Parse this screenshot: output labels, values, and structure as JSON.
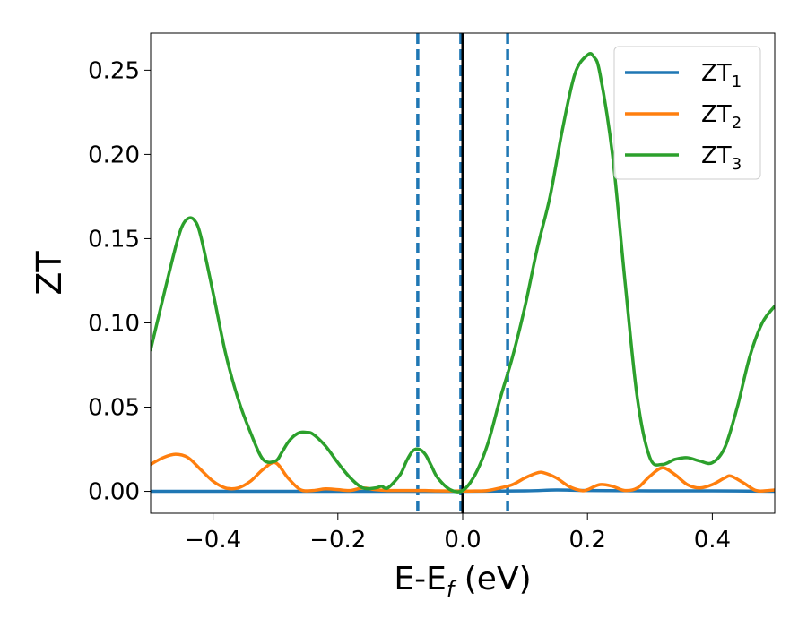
{
  "chart_data": {
    "type": "line",
    "xlabel": {
      "base": "E-E",
      "sub": "f",
      "suffix": " (eV)"
    },
    "ylabel": "ZT",
    "xlim": [
      -0.5,
      0.5
    ],
    "ylim": [
      -0.013,
      0.272
    ],
    "xticks": [
      -0.4,
      -0.2,
      0.0,
      0.2,
      0.4
    ],
    "xtick_labels": [
      "−0.4",
      "−0.2",
      "0.0",
      "0.2",
      "0.4"
    ],
    "yticks": [
      0.0,
      0.05,
      0.1,
      0.15,
      0.2,
      0.25
    ],
    "ytick_labels": [
      "0.00",
      "0.05",
      "0.10",
      "0.15",
      "0.20",
      "0.25"
    ],
    "grid": false,
    "legend_position": "top-right",
    "vlines": [
      {
        "x": -0.072,
        "style": "dashed",
        "color": "#1f77b4"
      },
      {
        "x": -0.003,
        "style": "dashed",
        "color": "#1f77b4"
      },
      {
        "x": 0.0,
        "style": "solid",
        "color": "#000000"
      },
      {
        "x": 0.072,
        "style": "dashed",
        "color": "#1f77b4"
      }
    ],
    "series": [
      {
        "name": {
          "base": "ZT",
          "sub": "1"
        },
        "color": "#1f77b4",
        "x": [
          -0.5,
          -0.3,
          -0.1,
          0.0,
          0.1,
          0.15,
          0.2,
          0.3,
          0.4,
          0.5
        ],
        "y": [
          0.0,
          0.0,
          0.0,
          0.0,
          0.0003,
          0.0008,
          0.0005,
          0.0003,
          0.0003,
          0.0
        ]
      },
      {
        "name": {
          "base": "ZT",
          "sub": "2"
        },
        "color": "#ff7f0e",
        "x": [
          -0.5,
          -0.48,
          -0.46,
          -0.44,
          -0.42,
          -0.4,
          -0.38,
          -0.36,
          -0.34,
          -0.32,
          -0.3,
          -0.28,
          -0.26,
          -0.24,
          -0.22,
          -0.2,
          -0.18,
          -0.16,
          -0.14,
          -0.12,
          -0.1,
          -0.08,
          -0.06,
          -0.04,
          -0.02,
          0.0,
          0.02,
          0.04,
          0.06,
          0.08,
          0.1,
          0.12,
          0.13,
          0.15,
          0.17,
          0.19,
          0.2,
          0.22,
          0.24,
          0.26,
          0.28,
          0.3,
          0.32,
          0.34,
          0.36,
          0.38,
          0.4,
          0.42,
          0.43,
          0.45,
          0.47,
          0.49,
          0.5
        ],
        "y": [
          0.016,
          0.02,
          0.022,
          0.02,
          0.013,
          0.006,
          0.002,
          0.002,
          0.006,
          0.013,
          0.017,
          0.008,
          0.001,
          0.0005,
          0.0015,
          0.001,
          0.0005,
          0.002,
          0.001,
          0.0005,
          0.0005,
          0.0005,
          0.0005,
          0.0003,
          0.0002,
          0.0002,
          0.0002,
          0.0005,
          0.002,
          0.004,
          0.008,
          0.011,
          0.011,
          0.008,
          0.003,
          0.0005,
          0.001,
          0.004,
          0.003,
          0.0005,
          0.002,
          0.009,
          0.014,
          0.01,
          0.004,
          0.002,
          0.004,
          0.008,
          0.009,
          0.005,
          0.0005,
          0.0005,
          0.0008
        ]
      },
      {
        "name": {
          "base": "ZT",
          "sub": "3"
        },
        "color": "#2ca02c",
        "x": [
          -0.5,
          -0.48,
          -0.46,
          -0.45,
          -0.44,
          -0.43,
          -0.42,
          -0.4,
          -0.38,
          -0.36,
          -0.34,
          -0.32,
          -0.3,
          -0.29,
          -0.28,
          -0.27,
          -0.26,
          -0.25,
          -0.24,
          -0.22,
          -0.2,
          -0.18,
          -0.16,
          -0.14,
          -0.13,
          -0.12,
          -0.1,
          -0.09,
          -0.08,
          -0.07,
          -0.06,
          -0.05,
          -0.04,
          -0.02,
          0.0,
          0.02,
          0.04,
          0.06,
          0.08,
          0.1,
          0.12,
          0.14,
          0.16,
          0.18,
          0.2,
          0.21,
          0.22,
          0.24,
          0.26,
          0.28,
          0.3,
          0.32,
          0.34,
          0.36,
          0.38,
          0.4,
          0.42,
          0.44,
          0.46,
          0.48,
          0.5
        ],
        "y": [
          0.084,
          0.115,
          0.145,
          0.157,
          0.162,
          0.161,
          0.152,
          0.118,
          0.082,
          0.055,
          0.035,
          0.019,
          0.018,
          0.023,
          0.029,
          0.033,
          0.035,
          0.035,
          0.034,
          0.027,
          0.017,
          0.008,
          0.002,
          0.002,
          0.003,
          0.002,
          0.01,
          0.018,
          0.024,
          0.025,
          0.022,
          0.015,
          0.008,
          0.001,
          0.0005,
          0.01,
          0.028,
          0.055,
          0.08,
          0.11,
          0.145,
          0.175,
          0.215,
          0.248,
          0.259,
          0.258,
          0.248,
          0.2,
          0.125,
          0.055,
          0.02,
          0.016,
          0.019,
          0.02,
          0.018,
          0.017,
          0.026,
          0.05,
          0.08,
          0.1,
          0.11
        ]
      }
    ]
  }
}
